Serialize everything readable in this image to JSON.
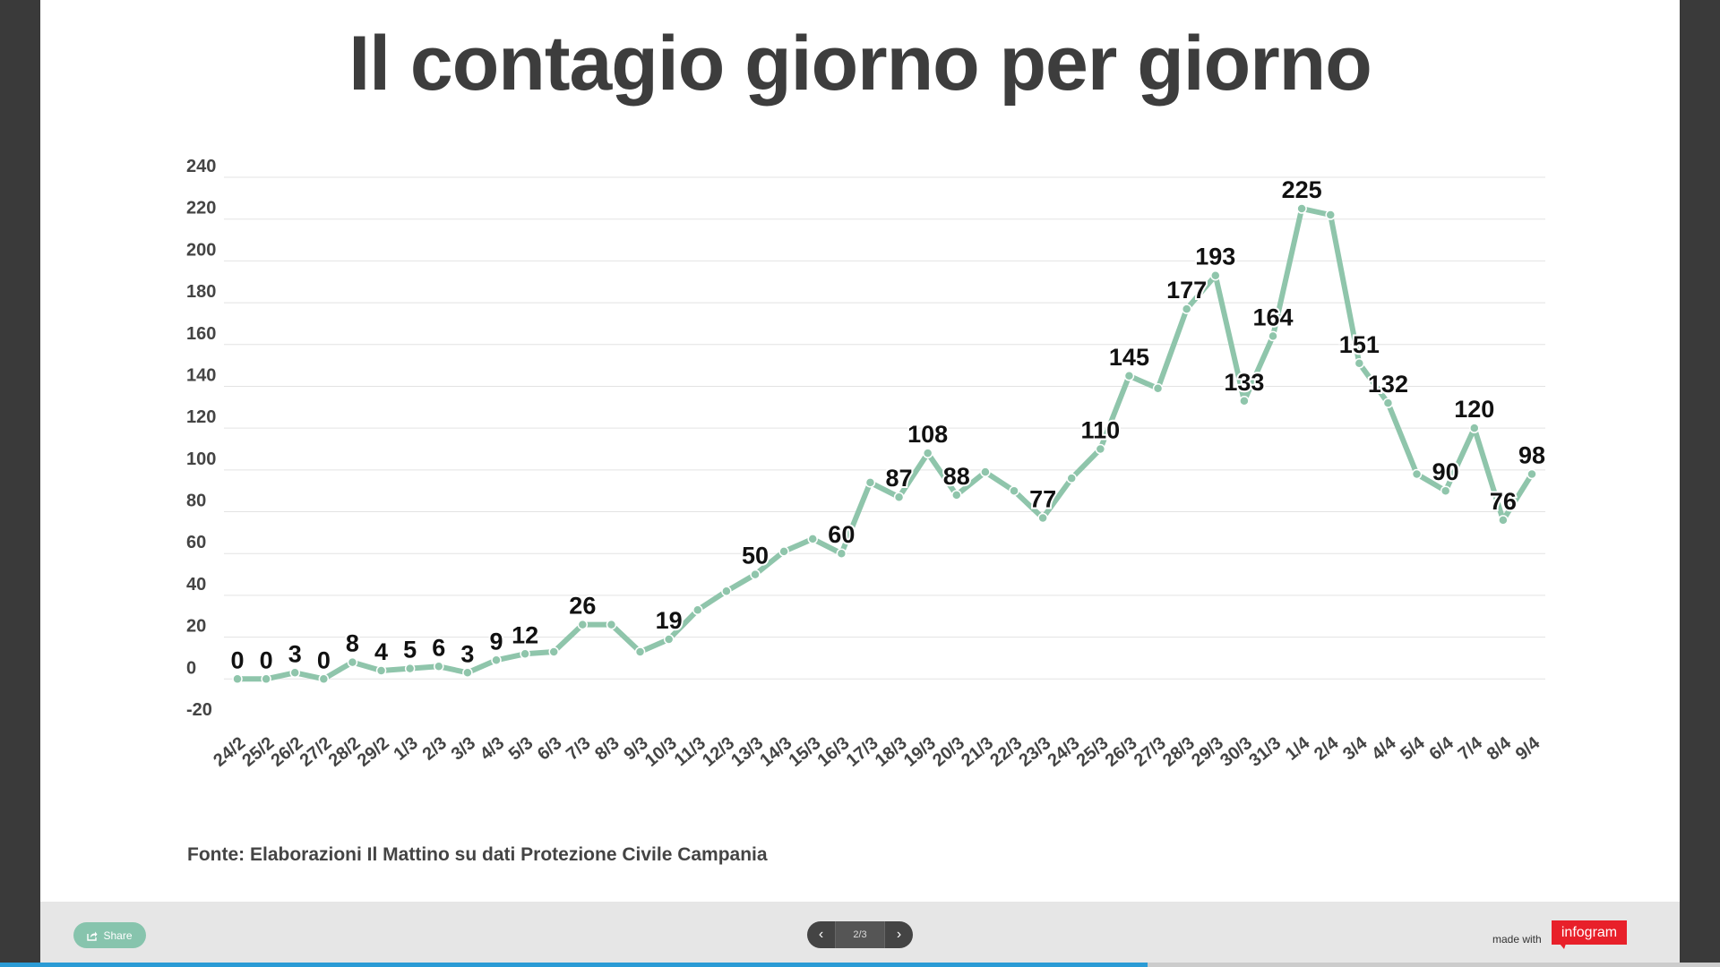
{
  "title": "Il contagio giorno per giorno",
  "source": "Fonte: Elaborazioni Il Mattino su dati Protezione Civile Campania",
  "footer": {
    "share_label": "Share",
    "page_indicator": "2/3",
    "prev_icon": "chevron-left-icon",
    "next_icon": "chevron-right-icon",
    "made_with": "made with",
    "brand": "infogram",
    "progress": 0.667
  },
  "colors": {
    "line": "#8fc5ab",
    "brand": "#e8202a",
    "progress": "#2b9bd5"
  },
  "chart_data": {
    "type": "line",
    "title": "Il contagio giorno per giorno",
    "xlabel": "",
    "ylabel": "",
    "ylim": [
      -20,
      240
    ],
    "yticks": [
      -20,
      0,
      20,
      40,
      60,
      80,
      100,
      120,
      140,
      160,
      180,
      200,
      220,
      240
    ],
    "grid": true,
    "categories": [
      "24/2",
      "25/2",
      "26/2",
      "27/2",
      "28/2",
      "29/2",
      "1/3",
      "2/3",
      "3/3",
      "4/3",
      "5/3",
      "6/3",
      "7/3",
      "8/3",
      "9/3",
      "10/3",
      "11/3",
      "12/3",
      "13/3",
      "14/3",
      "15/3",
      "16/3",
      "17/3",
      "18/3",
      "19/3",
      "20/3",
      "21/3",
      "22/3",
      "23/3",
      "24/3",
      "25/3",
      "26/3",
      "27/3",
      "28/3",
      "29/3",
      "30/3",
      "31/3",
      "1/4",
      "2/4",
      "3/4",
      "4/4",
      "5/4",
      "6/4",
      "7/4",
      "8/4",
      "9/4"
    ],
    "series": [
      {
        "values": [
          0,
          0,
          3,
          0,
          8,
          4,
          5,
          6,
          3,
          9,
          12,
          13,
          26,
          26,
          13,
          19,
          33,
          42,
          50,
          61,
          67,
          60,
          94,
          87,
          108,
          88,
          99,
          90,
          77,
          96,
          110,
          145,
          139,
          177,
          193,
          133,
          164,
          225,
          222,
          151,
          132,
          98,
          90,
          120,
          76,
          98
        ]
      }
    ],
    "data_labels": [
      {
        "index": 0,
        "text": "0"
      },
      {
        "index": 1,
        "text": "0"
      },
      {
        "index": 2,
        "text": "3"
      },
      {
        "index": 3,
        "text": "0"
      },
      {
        "index": 4,
        "text": "8"
      },
      {
        "index": 5,
        "text": "4"
      },
      {
        "index": 6,
        "text": "5"
      },
      {
        "index": 7,
        "text": "6"
      },
      {
        "index": 8,
        "text": "3"
      },
      {
        "index": 9,
        "text": "9"
      },
      {
        "index": 10,
        "text": "12"
      },
      {
        "index": 12,
        "text": "26"
      },
      {
        "index": 15,
        "text": "19"
      },
      {
        "index": 18,
        "text": "50"
      },
      {
        "index": 21,
        "text": "60"
      },
      {
        "index": 23,
        "text": "87"
      },
      {
        "index": 24,
        "text": "108"
      },
      {
        "index": 25,
        "text": "88"
      },
      {
        "index": 28,
        "text": "77"
      },
      {
        "index": 30,
        "text": "110"
      },
      {
        "index": 31,
        "text": "145"
      },
      {
        "index": 33,
        "text": "177"
      },
      {
        "index": 34,
        "text": "193"
      },
      {
        "index": 35,
        "text": "133"
      },
      {
        "index": 36,
        "text": "164"
      },
      {
        "index": 37,
        "text": "225"
      },
      {
        "index": 39,
        "text": "151"
      },
      {
        "index": 40,
        "text": "132"
      },
      {
        "index": 42,
        "text": "90"
      },
      {
        "index": 43,
        "text": "120"
      },
      {
        "index": 44,
        "text": "76"
      },
      {
        "index": 45,
        "text": "98"
      }
    ]
  }
}
